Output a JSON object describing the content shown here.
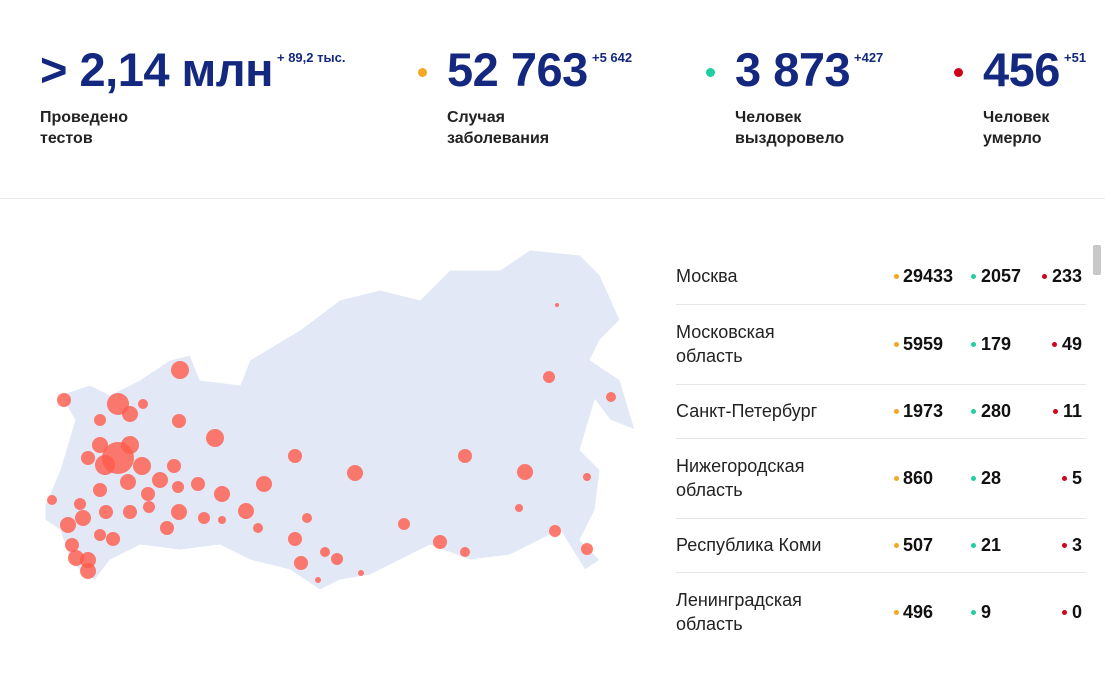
{
  "stats": [
    {
      "value": "> 2,14 млн",
      "delta": "+ 89,2 тыс.",
      "label": [
        "Проведено",
        "тестов"
      ]
    },
    {
      "value": "52 763",
      "delta": "+5 642",
      "label": [
        "Случая",
        "заболевания"
      ]
    },
    {
      "value": "3 873",
      "delta": "+427",
      "label": [
        "Человек",
        "выздоровело"
      ]
    },
    {
      "value": "456",
      "delta": "+51",
      "label": [
        "Человек",
        "умерло"
      ]
    }
  ],
  "regions": [
    {
      "name": [
        "Москва"
      ],
      "cases": "29433",
      "recovered": "2057",
      "deaths": "233"
    },
    {
      "name": [
        "Московская",
        "область"
      ],
      "cases": "5959",
      "recovered": "179",
      "deaths": "49"
    },
    {
      "name": [
        "Санкт-Петербург"
      ],
      "cases": "1973",
      "recovered": "280",
      "deaths": "11"
    },
    {
      "name": [
        "Нижегородская",
        "область"
      ],
      "cases": "860",
      "recovered": "28",
      "deaths": "5"
    },
    {
      "name": [
        "Республика Коми"
      ],
      "cases": "507",
      "recovered": "21",
      "deaths": "3"
    },
    {
      "name": [
        "Ленинградская",
        "область"
      ],
      "cases": "496",
      "recovered": "9",
      "deaths": "0"
    }
  ]
}
